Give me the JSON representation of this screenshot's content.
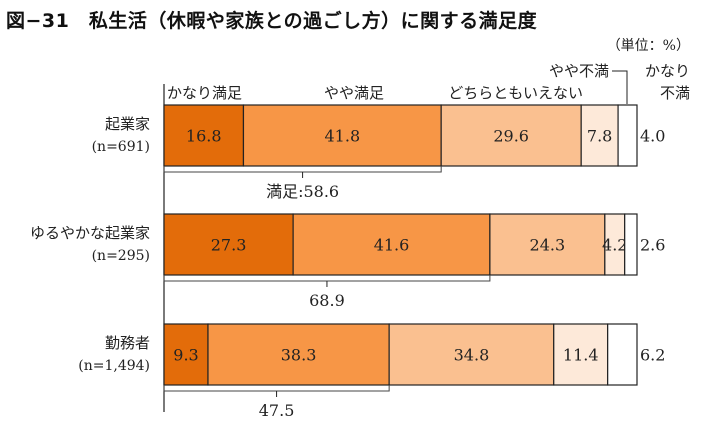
{
  "chart_data": {
    "type": "bar",
    "orientation": "horizontal-stacked-100",
    "title": "図−31　私生活（休暇や家族との過ごし方）に関する満足度",
    "unit_label": "（単位：%）",
    "legend": [
      "かなり満足",
      "やや満足",
      "どちらともいえない",
      "やや不満",
      "かなり不満"
    ],
    "legend_lines": {
      "somewhat_dissatisfied": "やや不満",
      "very_dissatisfied_1": "かなり",
      "very_dissatisfied_2": "不満"
    },
    "colors": [
      "#e36c0a",
      "#f79646",
      "#fac090",
      "#fde9d9",
      "#ffffff"
    ],
    "categories": [
      {
        "name": "起業家",
        "n": "(n=691)"
      },
      {
        "name": "ゆるやかな起業家",
        "n": "(n=295)"
      },
      {
        "name": "勤務者",
        "n": "(n=1,494)"
      }
    ],
    "series": [
      {
        "name": "かなり満足",
        "values": [
          16.8,
          27.3,
          9.3
        ]
      },
      {
        "name": "やや満足",
        "values": [
          41.8,
          41.6,
          38.3
        ]
      },
      {
        "name": "どちらともいえない",
        "values": [
          29.6,
          24.3,
          34.8
        ]
      },
      {
        "name": "やや不満",
        "values": [
          7.8,
          4.2,
          11.4
        ]
      },
      {
        "name": "かなり不満",
        "values": [
          4.0,
          2.6,
          6.2
        ]
      }
    ],
    "satisfied_totals": [
      "満足:58.6",
      "68.9",
      "47.5"
    ],
    "xlim": [
      0,
      100
    ]
  }
}
